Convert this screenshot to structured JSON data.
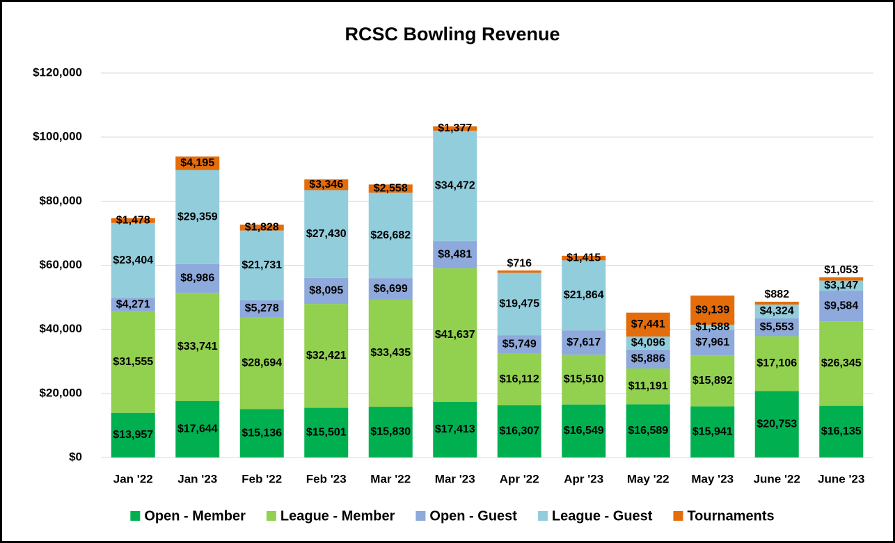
{
  "chart_data": {
    "type": "stacked_bar",
    "title": "RCSC Bowling Revenue",
    "categories": [
      "Jan '22",
      "Jan '23",
      "Feb '22",
      "Feb '23",
      "Mar '22",
      "Mar '23",
      "Apr '22",
      "Apr '23",
      "May '22",
      "May '23",
      "June '22",
      "June '23"
    ],
    "series": [
      {
        "name": "Open - Member",
        "color": "#00b050",
        "values": [
          13957,
          17644,
          15136,
          15501,
          15830,
          17413,
          16307,
          16549,
          16589,
          15941,
          20753,
          16135
        ],
        "value_labels": [
          "$13,957",
          "$17,644",
          "$15,136",
          "$15,501",
          "$15,830",
          "$17,413",
          "$16,307",
          "$16,549",
          "$16,589",
          "$15,941",
          "$20,753",
          "$16,135"
        ]
      },
      {
        "name": "League - Member",
        "color": "#92d050",
        "values": [
          31555,
          33741,
          28694,
          32421,
          33435,
          41637,
          16112,
          15510,
          11191,
          15892,
          17106,
          26345
        ],
        "value_labels": [
          "$31,555",
          "$33,741",
          "$28,694",
          "$32,421",
          "$33,435",
          "$41,637",
          "$16,112",
          "$15,510",
          "$11,191",
          "$15,892",
          "$17,106",
          "$26,345"
        ]
      },
      {
        "name": "Open - Guest",
        "color": "#8ea9db",
        "values": [
          4271,
          8986,
          5278,
          8095,
          6699,
          8481,
          5749,
          7617,
          5886,
          7961,
          5553,
          9584
        ],
        "value_labels": [
          "$4,271",
          "$8,986",
          "$5,278",
          "$8,095",
          "$6,699",
          "$8,481",
          "$5,749",
          "$7,617",
          "$5,886",
          "$7,961",
          "$5,553",
          "$9,584"
        ]
      },
      {
        "name": "League - Guest",
        "color": "#92cddc",
        "values": [
          23404,
          29359,
          21731,
          27430,
          26682,
          34472,
          19475,
          21864,
          4096,
          1588,
          4324,
          3147
        ],
        "value_labels": [
          "$23,404",
          "$29,359",
          "$21,731",
          "$27,430",
          "$26,682",
          "$34,472",
          "$19,475",
          "$21,864",
          "$4,096",
          "$1,588",
          "$4,324",
          "$3,147"
        ]
      },
      {
        "name": "Tournaments",
        "color": "#e46c0a",
        "values": [
          1478,
          4195,
          1828,
          3346,
          2558,
          1377,
          716,
          1415,
          7441,
          9139,
          882,
          1053
        ],
        "value_labels": [
          "$1,478",
          "$4,195",
          "$1,828",
          "$3,346",
          "$2,558",
          "$1,377",
          "$716",
          "$1,415",
          "$7,441",
          "$9,139",
          "$882",
          "$1,053"
        ]
      }
    ],
    "ylim": [
      0,
      120000
    ],
    "yticks": [
      {
        "value": 0,
        "label": "$0"
      },
      {
        "value": 20000,
        "label": "$20,000"
      },
      {
        "value": 40000,
        "label": "$40,000"
      },
      {
        "value": 60000,
        "label": "$60,000"
      },
      {
        "value": 80000,
        "label": "$80,000"
      },
      {
        "value": 100000,
        "label": "$100,000"
      },
      {
        "value": 120000,
        "label": "$120,000"
      }
    ],
    "grid": true,
    "legend": "bottom"
  }
}
